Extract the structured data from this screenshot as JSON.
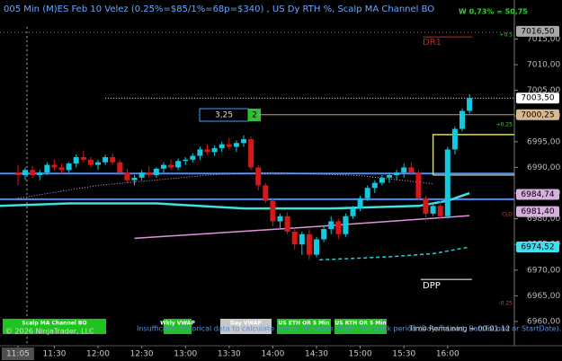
{
  "chart_data": {
    "type": "candlestick",
    "title": "005 Min (M)ES Feb 10 Velez (0.25%=$85/1%=68p=$340) , US Dy RTH %, Scalp MA Channel BO",
    "stat": "W 0,73% = 50,75",
    "x": [
      665,
      670,
      675,
      680,
      685,
      690,
      695,
      700,
      705,
      710,
      715,
      720,
      725,
      730,
      735,
      740,
      745,
      750,
      755,
      760,
      765,
      770,
      775,
      780,
      785,
      790,
      795,
      800,
      805,
      810,
      815,
      820,
      825,
      830,
      835,
      840,
      845,
      850,
      855,
      860,
      865,
      870,
      875,
      880,
      885,
      890,
      895,
      900,
      905,
      910,
      915,
      920,
      925,
      930,
      935,
      940,
      945,
      950,
      955,
      960,
      965,
      970,
      975
    ],
    "open": [
      6989,
      6988.5,
      6989.5,
      6988.5,
      6989,
      6990.5,
      6990,
      6989.5,
      6990.75,
      6992,
      6991.5,
      6990.5,
      6991,
      6992,
      6991,
      6989,
      6987.5,
      6988,
      6989,
      6988.5,
      6989.75,
      6990.5,
      6990,
      6991.25,
      6991.5,
      6992.25,
      6993.5,
      6993,
      6993.75,
      6994.5,
      6994,
      6994.75,
      6995.5,
      6990,
      6986.5,
      6983.5,
      6979.5,
      6980.5,
      6977.5,
      6975,
      6977,
      6973,
      6976,
      6978,
      6979.5,
      6977,
      6980.5,
      6982,
      6984,
      6986,
      6987,
      6988,
      6988.5,
      6989,
      6990,
      6989,
      6984,
      6981,
      6982.5,
      6980.5,
      6993.5,
      6997.5,
      7001
    ],
    "high": [
      6990.5,
      6990,
      6990.25,
      6989.5,
      6991,
      6991.5,
      6990.75,
      6991,
      6992.5,
      6993.25,
      6992,
      6991.5,
      6992.5,
      6992.75,
      6991.5,
      6989.75,
      6988.5,
      6989.5,
      6990.25,
      6990,
      6991,
      6991.5,
      6991.75,
      6992,
      6992.75,
      6994,
      6994.5,
      6994.25,
      6995,
      6995.75,
      6995.25,
      6996.25,
      6996,
      6990.5,
      6987,
      6984,
      6981,
      6981.25,
      6978.25,
      6977.5,
      6978,
      6976.5,
      6978.5,
      6980.5,
      6980,
      6981,
      6982.5,
      6984.5,
      6986.5,
      6987.5,
      6988.5,
      6989,
      6989.5,
      6990.75,
      6991,
      6989.5,
      6984.5,
      6983,
      6983.5,
      6994,
      6998,
      7001.5,
      7004.25
    ],
    "low": [
      6986.5,
      6987.5,
      6988,
      6987.5,
      6988.5,
      6989.5,
      6988.75,
      6989,
      6990,
      6991,
      6990,
      6989.5,
      6990.5,
      6990.5,
      6988.5,
      6987,
      6986.5,
      6987.5,
      6988,
      6988,
      6989,
      6989.5,
      6989.5,
      6990.5,
      6991,
      6991.5,
      6992.5,
      6992.25,
      6993,
      6993.5,
      6993,
      6994,
      6989.5,
      6985.5,
      6983,
      6978.5,
      6978,
      6977,
      6974,
      6973,
      6972,
      6972.5,
      6975.5,
      6977,
      6976,
      6976.5,
      6980,
      6981.5,
      6983.5,
      6985,
      6986.5,
      6987,
      6987.5,
      6988,
      6988.5,
      6983.5,
      6979.5,
      6980.5,
      6980,
      6980,
      6992.5,
      6997,
      7000.5
    ],
    "close": [
      6988.5,
      6989.5,
      6988.5,
      6989,
      6990.5,
      6990,
      6989.5,
      6990.75,
      6992,
      6991.5,
      6990.5,
      6991,
      6992,
      6991,
      6989,
      6987.5,
      6988,
      6989,
      6988.5,
      6989.75,
      6990.5,
      6990,
      6991.25,
      6991.5,
      6992.25,
      6993.5,
      6993,
      6993.75,
      6994.5,
      6994,
      6994.75,
      6995.5,
      6990,
      6986.5,
      6983.5,
      6979.5,
      6980.5,
      6977.5,
      6975,
      6977,
      6973,
      6976,
      6978,
      6979.5,
      6977,
      6980.5,
      6982,
      6984,
      6986,
      6987,
      6988,
      6988.5,
      6989,
      6990,
      6989,
      6984,
      6981,
      6982.5,
      6980.5,
      6993.5,
      6997.5,
      7001,
      7003.5
    ],
    "up_color": "#14c8e0",
    "down_color": "#d81818",
    "xlim": [
      652.7,
      1005.8
    ],
    "xticks": [
      {
        "value": 665,
        "label": "11:05"
      },
      {
        "value": 690,
        "label": "11:30"
      },
      {
        "value": 720,
        "label": "12:00"
      },
      {
        "value": 750,
        "label": "12:30"
      },
      {
        "value": 780,
        "label": "13:00"
      },
      {
        "value": 810,
        "label": "13:30"
      },
      {
        "value": 840,
        "label": "14:00"
      },
      {
        "value": 870,
        "label": "14:30"
      },
      {
        "value": 900,
        "label": "15:00"
      },
      {
        "value": 930,
        "label": "15:30"
      },
      {
        "value": 960,
        "label": "16:00"
      }
    ],
    "ylim": [
      6957.55,
      7017.35
    ],
    "yticks": [
      {
        "value": 6960,
        "label": "6960,00"
      },
      {
        "value": 6965,
        "label": "6965,00"
      },
      {
        "value": 6970,
        "label": "6970,00"
      },
      {
        "value": 6975,
        "label": "6975,00"
      },
      {
        "value": 6980,
        "label": "6980,00"
      },
      {
        "value": 6985,
        "label": "6985,00"
      },
      {
        "value": 6990,
        "label": "6990,00"
      },
      {
        "value": 6995,
        "label": "6995,00"
      },
      {
        "value": 7000,
        "label": "7000,00"
      },
      {
        "value": 7005,
        "label": "7005,00"
      },
      {
        "value": 7010,
        "label": "7010,00"
      },
      {
        "value": 7015,
        "label": "7015,00"
      }
    ],
    "lines": [
      {
        "color": "#3ee0e0",
        "width": 2.5,
        "x": [
          652.7,
          700,
          760,
          820,
          880,
          940,
          960,
          975
        ],
        "values": [
          6982.5,
          6983,
          6983,
          6982,
          6982,
          6982.5,
          6983.5,
          6985
        ]
      },
      {
        "color": "#e090e0",
        "width": 1.5,
        "x": [
          745,
          800,
          860,
          920,
          975
        ],
        "values": [
          6976.2,
          6977.2,
          6978.3,
          6979.5,
          6980.6
        ]
      },
      {
        "color": "#20d0e0",
        "width": 1.5,
        "dash": "4 3",
        "x": [
          872,
          920,
          950,
          975
        ],
        "values": [
          6972,
          6972.6,
          6973.2,
          6974.5
        ]
      },
      {
        "color": "#d0a0d0",
        "width": 1,
        "dash": "1 2",
        "x": [
          665,
          720,
          800,
          840,
          900,
          950
        ],
        "values": [
          6984,
          6986.5,
          6988.6,
          6989,
          6988.4,
          6986.8
        ]
      },
      {
        "color": "#e0e020",
        "width": 1.5,
        "x": [
          950,
          950,
          1005.8
        ],
        "values": [
          6988.5,
          6996.4,
          6996.4
        ]
      },
      {
        "color": "#f0f0a0",
        "width": 1,
        "x": [
          950,
          1005.8
        ],
        "values": [
          6988.5,
          6988.5
        ]
      }
    ],
    "levels": [
      {
        "value": 6988.8,
        "color": "#4a8cff",
        "width": 2,
        "start": 652.7,
        "end": 1005.8
      },
      {
        "value": 6983.8,
        "color": "#4a8cff",
        "width": 2,
        "start": 652.7,
        "end": 1005.8
      },
      {
        "value": 7003.5,
        "color": "#ffffff",
        "width": 1,
        "dash": "1 2",
        "start": 725,
        "end": 1005.8
      },
      {
        "value": 7000.25,
        "color": "#c8a070",
        "width": 1,
        "start": 830,
        "end": 1005.8
      },
      {
        "value": 7015.4,
        "color": "#d02020",
        "width": 1,
        "start": 943,
        "end": 977
      },
      {
        "value": 6968.2,
        "color": "#ffffff",
        "width": 1,
        "start": 941.5,
        "end": 976.7
      }
    ],
    "price_labels": [
      {
        "value": 7016.5,
        "label": "7016,50",
        "color": "#a8a8a8"
      },
      {
        "value": 7003.5,
        "label": "7003,50",
        "color": "#ffffff"
      },
      {
        "value": 7000.25,
        "label": "7000,25",
        "color": "#d8b890"
      },
      {
        "value": 6984.74,
        "label": "6984,74",
        "color": "#d8b0e0"
      },
      {
        "value": 6981.4,
        "label": "6981,40",
        "color": "#d8b0e0"
      },
      {
        "value": 6974.52,
        "label": "6974,52",
        "color": "#40e0f0"
      }
    ],
    "annotations": [
      {
        "text": "DR1",
        "color": "#d02020"
      },
      {
        "text": "DPP",
        "color": "#ffffff"
      },
      {
        "text": "+0.5",
        "color": "#40d040"
      },
      {
        "text": "+0.25",
        "color": "#40d040"
      },
      {
        "text": "CLO",
        "color": "#d04040"
      },
      {
        "text": "-0.25",
        "color": "#d04040"
      }
    ],
    "order": {
      "value": 3.25,
      "label": "3,25"
    },
    "order_count": 2,
    "legend_buttons": [
      {
        "text": "Scalp MA Channel BO",
        "color": "#1fc21f"
      },
      {
        "text": "Wkly VWAP",
        "color": "#1fc21f"
      },
      {
        "text": "Day VWAP",
        "color": "#c8c8c8"
      },
      {
        "text": "US ETH OR 5 Min",
        "color": "#1fc21f"
      },
      {
        "text": "US RTH OR 5 Min",
        "color": "#1fc21f"
      }
    ],
    "copyright": "© 2026 NinjaTrader, LLC",
    "message": "Insufficient historical data to calculate pivots. Increase chart look back period (DaysToLoad, BarsToLoad or StartDate).",
    "time_remaining": "Time Remaining = 00:01:12"
  }
}
